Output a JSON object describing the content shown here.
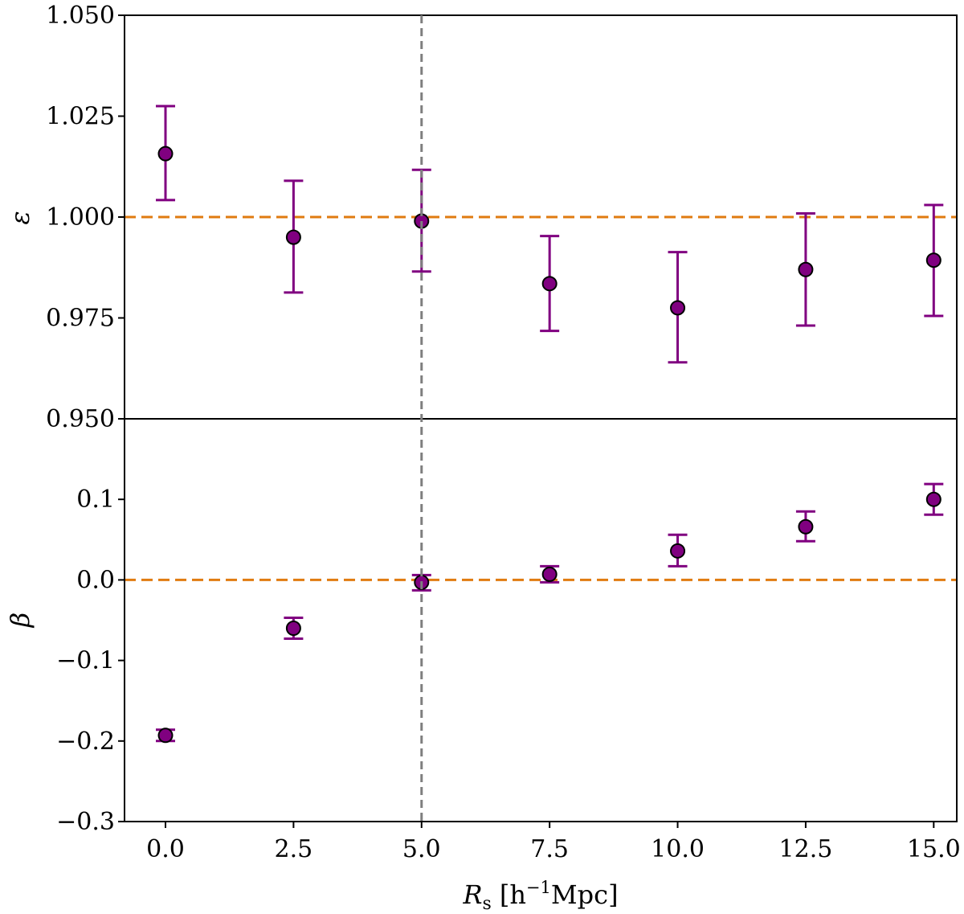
{
  "chart_data": [
    {
      "type": "scatter",
      "panel": "top",
      "ylabel": "ε",
      "ylim": [
        0.95,
        1.05
      ],
      "yticks": [
        0.95,
        0.975,
        1.0,
        1.025,
        1.05
      ],
      "ytick_labels": [
        "0.950",
        "0.975",
        "1.000",
        "1.025",
        "1.050"
      ],
      "reference_line": 1.0,
      "series": [
        {
          "name": "epsilon",
          "x": [
            0.0,
            2.5,
            5.0,
            7.5,
            10.0,
            12.5,
            15.0
          ],
          "y": [
            1.0157,
            0.995,
            0.999,
            0.9835,
            0.9775,
            0.987,
            0.9893
          ],
          "yerr_low": [
            1.0042,
            0.9813,
            0.9865,
            0.9718,
            0.964,
            0.9731,
            0.9755
          ],
          "yerr_high": [
            1.0275,
            1.009,
            1.0117,
            0.9953,
            0.9913,
            1.0009,
            1.003
          ]
        }
      ]
    },
    {
      "type": "scatter",
      "panel": "bottom",
      "ylabel": "β",
      "xlabel": "R_s [h^-1 Mpc]",
      "ylim": [
        -0.3,
        0.2
      ],
      "yticks": [
        -0.3,
        -0.2,
        -0.1,
        0.0,
        0.1
      ],
      "ytick_labels": [
        "−0.3",
        "−0.2",
        "−0.1",
        "0.0",
        "0.1"
      ],
      "xlim": [
        -0.8,
        15.45
      ],
      "xticks": [
        0.0,
        2.5,
        5.0,
        7.5,
        10.0,
        12.5,
        15.0
      ],
      "xtick_labels": [
        "0.0",
        "2.5",
        "5.0",
        "7.5",
        "10.0",
        "12.5",
        "15.0"
      ],
      "reference_line": 0.0,
      "series": [
        {
          "name": "beta",
          "x": [
            0.0,
            2.5,
            5.0,
            7.5,
            10.0,
            12.5,
            15.0
          ],
          "y": [
            -0.193,
            -0.06,
            -0.003,
            0.007,
            0.036,
            0.066,
            0.1
          ],
          "yerr_low": [
            -0.2,
            -0.073,
            -0.013,
            -0.003,
            0.017,
            0.048,
            0.081
          ],
          "yerr_high": [
            -0.186,
            -0.047,
            0.006,
            0.017,
            0.056,
            0.085,
            0.119
          ]
        }
      ]
    }
  ],
  "vertical_line_x": 5.0,
  "xlabel": {
    "main": "R",
    "sub": "s",
    "unit": "[h",
    "exp": "−1",
    "rest": "Mpc]"
  },
  "colors": {
    "marker": "#800080",
    "errorbar": "#800080",
    "reference": "#E07B10",
    "vline": "#7f7f7f",
    "axes": "#000000"
  }
}
